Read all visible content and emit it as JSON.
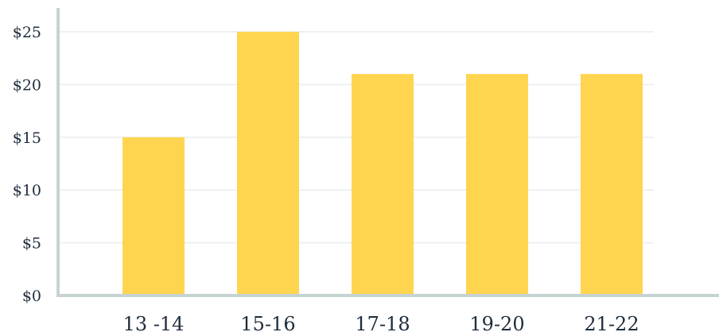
{
  "chart_data": {
    "type": "bar",
    "title": "",
    "xlabel": "",
    "ylabel": "",
    "categories": [
      "13 -14",
      "15-16",
      "17-18",
      "19-20",
      "21-22"
    ],
    "values": [
      15,
      25,
      21,
      21,
      21
    ],
    "ylim": [
      0,
      25
    ],
    "yticks": [
      {
        "value": 0,
        "label": "$0"
      },
      {
        "value": 5,
        "label": "$5"
      },
      {
        "value": 10,
        "label": "$10"
      },
      {
        "value": 15,
        "label": "$15"
      },
      {
        "value": 20,
        "label": "$20"
      },
      {
        "value": 25,
        "label": "$25"
      }
    ],
    "grid": true,
    "legend": "none",
    "colors": {
      "bar": "#FFD54F",
      "axis": "#C5D3D3",
      "grid": "#EEF1F1",
      "text": "#1F2D3D"
    }
  }
}
